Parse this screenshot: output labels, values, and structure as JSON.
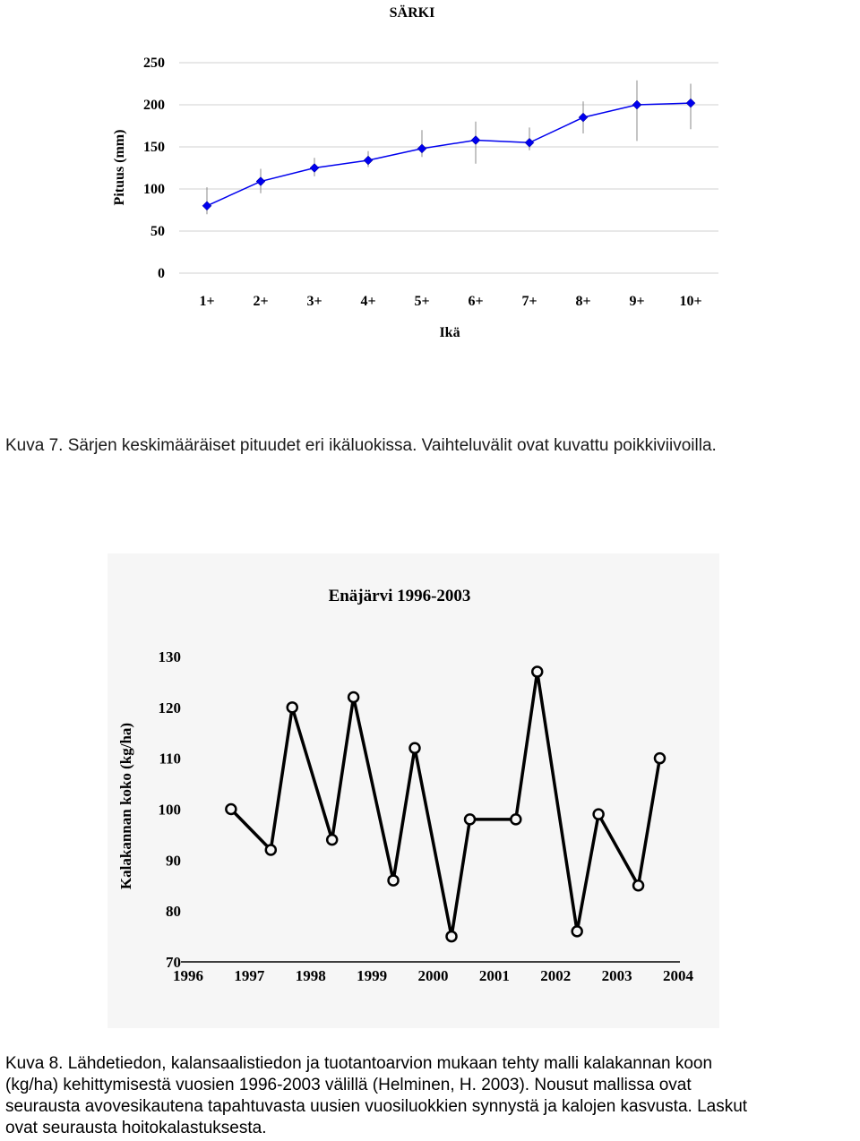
{
  "chart_data": [
    {
      "type": "line",
      "title": "SÄRKI",
      "xlabel": "Ikä",
      "ylabel": "Pituus (mm)",
      "categories": [
        "1+",
        "2+",
        "3+",
        "4+",
        "5+",
        "6+",
        "7+",
        "8+",
        "9+",
        "10+"
      ],
      "ylim": [
        0,
        250
      ],
      "yticks": [
        "0",
        "50",
        "100",
        "150",
        "200",
        "250"
      ],
      "series": [
        {
          "values": [
            80,
            109,
            125,
            134,
            148,
            158,
            155,
            185,
            200,
            202
          ],
          "error_low": [
            70,
            95,
            115,
            126,
            138,
            130,
            146,
            166,
            157,
            171
          ],
          "error_high": [
            102,
            124,
            137,
            145,
            170,
            180,
            173,
            204,
            229,
            225
          ]
        }
      ],
      "grid": true,
      "line_color": "#0000ee",
      "marker": "diamond"
    },
    {
      "type": "line",
      "title": "Enäjärvi 1996-2003",
      "xlabel": "",
      "ylabel": "Kalakannan koko (kg/ha)",
      "xticks": [
        "1996",
        "1997",
        "1998",
        "1999",
        "2000",
        "2001",
        "2002",
        "2003",
        "2004"
      ],
      "xlim": [
        1996,
        2004
      ],
      "ylim": [
        70,
        130
      ],
      "yticks": [
        "70",
        "80",
        "90",
        "100",
        "110",
        "120",
        "130"
      ],
      "series": [
        {
          "x": [
            1996.7,
            1997.35,
            1997.7,
            1998.35,
            1998.7,
            1999.35,
            1999.7,
            2000.3,
            2000.6,
            2001.35,
            2001.7,
            2002.35,
            2002.7,
            2003.35,
            2003.7
          ],
          "y": [
            100,
            92,
            120,
            94,
            122,
            86,
            112,
            75,
            98,
            98,
            127,
            76,
            99,
            85,
            110
          ]
        }
      ],
      "grid": false,
      "line_color": "#000000",
      "marker": "open-circle"
    }
  ],
  "captions": {
    "fig7": "Kuva 7. Särjen keskimääräiset pituudet eri ikäluokissa. Vaihteluvälit ovat kuvattu poikkiviivoilla.",
    "fig8_line1": "Kuva 8. Lähdetiedon, kalansaalistiedon ja tuotantoarvion mukaan tehty malli kalakannan koon",
    "fig8_line2": "(kg/ha) kehittymisestä vuosien 1996-2003 välillä (Helminen, H. 2003). Nousut mallissa ovat",
    "fig8_line3": "seurausta avovesikautena tapahtuvasta uusien vuosiluokkien synnystä ja kalojen kasvusta. Laskut",
    "fig8_line4": "ovat seurausta hoitokalastuksesta."
  }
}
